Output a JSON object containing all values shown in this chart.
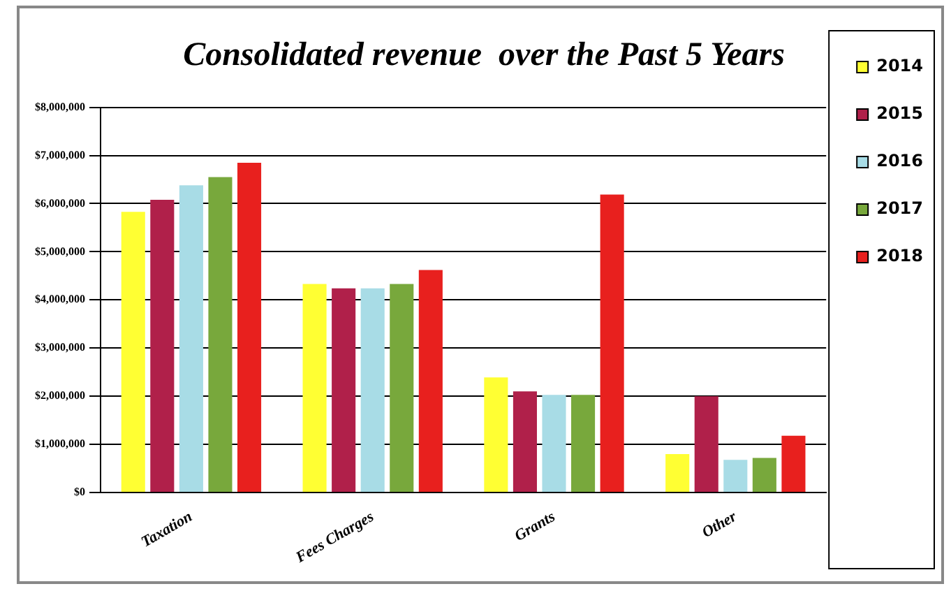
{
  "chart_data": {
    "type": "bar",
    "title": "Consolidated revenue  over the Past 5 Years",
    "categories": [
      "Taxation",
      "Fees Charges",
      "Grants",
      "Other"
    ],
    "series": [
      {
        "name": "2014",
        "color": "#ffff33",
        "values": [
          5830000,
          4330000,
          2390000,
          800000
        ]
      },
      {
        "name": "2015",
        "color": "#b0204a",
        "values": [
          6080000,
          4240000,
          2100000,
          2000000
        ]
      },
      {
        "name": "2016",
        "color": "#a8dce6",
        "values": [
          6380000,
          4240000,
          2030000,
          680000
        ]
      },
      {
        "name": "2017",
        "color": "#78a83c",
        "values": [
          6550000,
          4330000,
          2030000,
          720000
        ]
      },
      {
        "name": "2018",
        "color": "#e8201e",
        "values": [
          6850000,
          4620000,
          6190000,
          1180000
        ]
      }
    ],
    "ylim": [
      0,
      8000000
    ],
    "yticks": [
      {
        "value": 0,
        "label": "$0"
      },
      {
        "value": 1000000,
        "label": "$1,000,000"
      },
      {
        "value": 2000000,
        "label": "$2,000,000"
      },
      {
        "value": 3000000,
        "label": "$3,000,000"
      },
      {
        "value": 4000000,
        "label": "$4,000,000"
      },
      {
        "value": 5000000,
        "label": "$5,000,000"
      },
      {
        "value": 6000000,
        "label": "$6,000,000"
      },
      {
        "value": 7000000,
        "label": "$7,000,000"
      },
      {
        "value": 8000000,
        "label": "$8,000,000"
      }
    ],
    "grid": "y",
    "legend": "right"
  }
}
